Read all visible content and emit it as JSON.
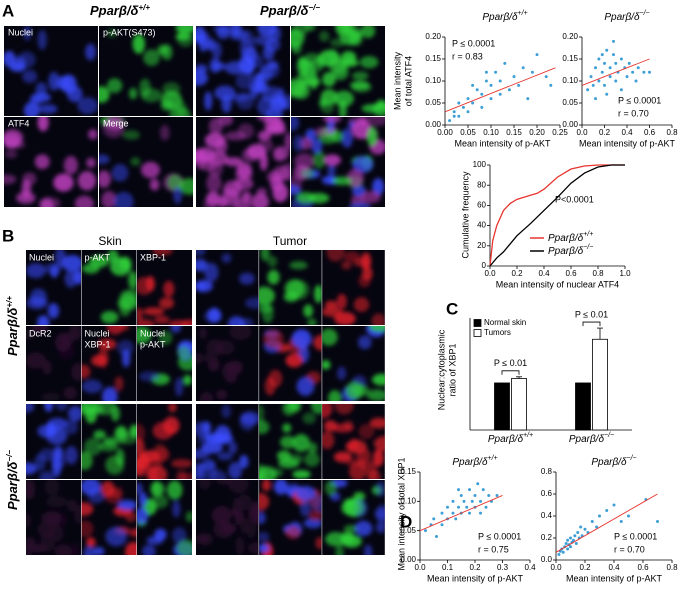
{
  "figure": {
    "panel_labels": [
      "A",
      "B",
      "C",
      "D"
    ],
    "image_a": {
      "headers": [
        {
          "base": "Pparβ/δ",
          "sup": "+/+"
        },
        {
          "base": "Pparβ/δ",
          "sup": "−/−"
        }
      ],
      "channels": [
        "Nuclei",
        "p-AKT(S473)",
        "ATF4",
        "Merge"
      ]
    },
    "image_b": {
      "columns": [
        "Skin",
        "Tumor"
      ],
      "rows": [
        {
          "base": "Pparβ/δ",
          "sup": "+/+"
        },
        {
          "base": "Pparβ/δ",
          "sup": "−/−"
        }
      ],
      "channels": [
        [
          "Nuclei"
        ],
        [
          "p-AKT"
        ],
        [
          "XBP-1"
        ],
        [
          "DcR2"
        ],
        [
          "Nuclei",
          "XBP-1"
        ],
        [
          "Nuclei",
          "p-AKT"
        ]
      ]
    }
  },
  "chart_data": [
    {
      "type": "scatter",
      "title": "Pparβ/δ",
      "title_sup": "+/+",
      "xlabel": "Mean intensity of p-AKT",
      "ylabel": [
        "Mean intensity",
        "of total ATF4"
      ],
      "color": "#3d9fd6",
      "x": [
        0.01,
        0.02,
        0.02,
        0.03,
        0.04,
        0.05,
        0.05,
        0.06,
        0.07,
        0.08,
        0.08,
        0.09,
        0.1,
        0.1,
        0.11,
        0.12,
        0.12,
        0.13,
        0.14,
        0.15,
        0.16,
        0.17,
        0.18,
        0.19,
        0.2,
        0.22,
        0.23,
        0.03,
        0.06,
        0.09
      ],
      "values": [
        0.01,
        0.03,
        0.02,
        0.05,
        0.04,
        0.03,
        0.06,
        0.05,
        0.08,
        0.04,
        0.07,
        0.1,
        0.06,
        0.09,
        0.12,
        0.07,
        0.1,
        0.14,
        0.08,
        0.11,
        0.09,
        0.13,
        0.06,
        0.12,
        0.16,
        0.11,
        0.09,
        0.02,
        0.09,
        0.12
      ],
      "fit_line": {
        "x": [
          0,
          0.24
        ],
        "y": [
          0.03,
          0.13
        ],
        "color": "#e8352f"
      },
      "annotations": [
        "P ≤ 0.0001",
        "r = 0.83"
      ],
      "xlim": [
        0,
        0.25
      ],
      "xticks": [
        {
          "value": 0,
          "label": "0.00"
        },
        0.05,
        {
          "value": 0.1,
          "label": "0.10"
        },
        0.15,
        {
          "value": 0.2,
          "label": "0.20"
        },
        0.25
      ],
      "ylim": [
        0,
        0.2
      ],
      "yticks": [
        {
          "value": 0,
          "label": "0.00"
        },
        0.05,
        {
          "value": 0.1,
          "label": "0.10"
        },
        0.15,
        {
          "value": 0.2,
          "label": "0.20"
        }
      ]
    },
    {
      "type": "scatter",
      "title": "Pparβ/δ",
      "title_sup": "−/−",
      "xlabel": "Mean intensity of p-AKT",
      "color": "#3d9fd6",
      "x": [
        0.05,
        0.08,
        0.1,
        0.12,
        0.15,
        0.15,
        0.18,
        0.2,
        0.2,
        0.22,
        0.25,
        0.25,
        0.28,
        0.3,
        0.3,
        0.32,
        0.35,
        0.35,
        0.38,
        0.4,
        0.42,
        0.45,
        0.48,
        0.5,
        0.55,
        0.6,
        0.12,
        0.18,
        0.28,
        0.22
      ],
      "values": [
        0.08,
        0.11,
        0.09,
        0.13,
        0.1,
        0.15,
        0.12,
        0.09,
        0.14,
        0.17,
        0.11,
        0.13,
        0.16,
        0.1,
        0.14,
        0.12,
        0.15,
        0.08,
        0.13,
        0.11,
        0.14,
        0.12,
        0.1,
        0.13,
        0.12,
        0.12,
        0.06,
        0.16,
        0.19,
        0.07
      ],
      "fit_line": {
        "x": [
          0,
          0.6
        ],
        "y": [
          0.09,
          0.15
        ],
        "color": "#e8352f"
      },
      "annotations": [
        "P ≤ 0.0001",
        "r = 0.70"
      ],
      "xlim": [
        0,
        0.8
      ],
      "xticks": [
        {
          "value": 0,
          "label": "0.0"
        },
        0.2,
        0.4,
        0.6,
        0.8
      ],
      "ylim": [
        0,
        0.2
      ],
      "yticks": [
        {
          "value": 0,
          "label": "0.00"
        },
        0.05,
        {
          "value": 0.1,
          "label": "0.10"
        },
        0.15,
        {
          "value": 0.2,
          "label": "0.20"
        }
      ]
    },
    {
      "type": "line",
      "xlabel": "Mean intensity of nuclear ATF4",
      "ylabel": [
        "Cumulative frequency"
      ],
      "annotations": [
        "P<0.0001"
      ],
      "series": [
        {
          "name": "Pparβ/δ",
          "name_sup": "+/+",
          "color": "#e8352f",
          "x": [
            0,
            0.02,
            0.05,
            0.1,
            0.15,
            0.2,
            0.3,
            0.35,
            0.4,
            0.5,
            0.6,
            0.7,
            0.8,
            1.0
          ],
          "values": [
            0,
            25,
            40,
            55,
            62,
            66,
            70,
            72,
            76,
            88,
            96,
            99,
            100,
            100
          ]
        },
        {
          "name": "Pparβ/δ",
          "name_sup": "−/−",
          "color": "#000000",
          "x": [
            0,
            0.05,
            0.1,
            0.15,
            0.2,
            0.3,
            0.4,
            0.5,
            0.6,
            0.7,
            0.8,
            0.9,
            1.0
          ],
          "values": [
            0,
            8,
            14,
            22,
            30,
            42,
            55,
            68,
            82,
            92,
            98,
            100,
            100
          ]
        }
      ],
      "xlim": [
        0,
        1
      ],
      "xticks": [
        {
          "value": 0,
          "label": "0.0"
        },
        0.2,
        0.4,
        0.6,
        0.8,
        {
          "value": 1,
          "label": "1.0"
        }
      ],
      "ylim": [
        0,
        100
      ],
      "yticks": [
        0,
        20,
        40,
        60,
        80,
        100
      ]
    },
    {
      "type": "bar",
      "ylabel": [
        "Nuclear:cytoplasmic",
        "ratio of XBP1"
      ],
      "categories": [
        "Pparβ/δ",
        "Pparβ/δ"
      ],
      "category_sups": [
        "+/+",
        "−/−"
      ],
      "series": [
        {
          "name": "Normal skin",
          "color": "#000000",
          "values": [
            0.84,
            0.84
          ]
        },
        {
          "name": "Tumors",
          "color": "#ffffff",
          "values": [
            0.92,
            1.62
          ],
          "errors": [
            0.03,
            0.2
          ]
        }
      ],
      "annotations": [
        "P ≤ 0.01",
        "P ≤ 0.01"
      ],
      "ylim": [
        0,
        2
      ]
    },
    {
      "type": "scatter",
      "title": "Pparβ/δ",
      "title_sup": "+/+",
      "xlabel": "Mean intensity of p-AKT",
      "ylabel": [
        "Mean intensity of total XBP1"
      ],
      "color": "#3d9fd6",
      "x": [
        0.02,
        0.04,
        0.05,
        0.06,
        0.08,
        0.08,
        0.1,
        0.1,
        0.12,
        0.12,
        0.13,
        0.14,
        0.15,
        0.15,
        0.16,
        0.17,
        0.18,
        0.18,
        0.19,
        0.2,
        0.2,
        0.21,
        0.22,
        0.23,
        0.24,
        0.25,
        0.26,
        0.28,
        0.14,
        0.22
      ],
      "values": [
        0.05,
        0.06,
        0.07,
        0.04,
        0.06,
        0.08,
        0.07,
        0.09,
        0.08,
        0.1,
        0.07,
        0.09,
        0.08,
        0.11,
        0.1,
        0.09,
        0.12,
        0.08,
        0.1,
        0.09,
        0.11,
        0.13,
        0.1,
        0.12,
        0.09,
        0.11,
        0.1,
        0.11,
        0.12,
        0.08
      ],
      "fit_line": {
        "x": [
          0,
          0.3
        ],
        "y": [
          0.05,
          0.11
        ],
        "color": "#e8352f"
      },
      "annotations": [
        "P ≤ 0.0001",
        "r = 0.75"
      ],
      "xlim": [
        0,
        0.4
      ],
      "xticks": [
        {
          "value": 0,
          "label": "0.0"
        },
        0.1,
        0.2,
        0.3,
        0.4
      ],
      "ylim": [
        0,
        0.15
      ],
      "yticks": [
        {
          "value": 0,
          "label": "0.00"
        },
        0.05,
        {
          "value": 0.1,
          "label": "0.10"
        },
        0.15
      ]
    },
    {
      "type": "scatter",
      "title": "Pparβ/δ",
      "title_sup": "−/−",
      "xlabel": "Mean intensity of p-AKT",
      "color": "#3d9fd6",
      "x": [
        0.02,
        0.03,
        0.04,
        0.05,
        0.06,
        0.07,
        0.08,
        0.08,
        0.09,
        0.1,
        0.1,
        0.11,
        0.12,
        0.13,
        0.14,
        0.15,
        0.16,
        0.17,
        0.18,
        0.2,
        0.22,
        0.25,
        0.28,
        0.3,
        0.35,
        0.4,
        0.45,
        0.5,
        0.62,
        0.7
      ],
      "values": [
        0.05,
        0.08,
        0.1,
        0.07,
        0.12,
        0.15,
        0.1,
        0.18,
        0.14,
        0.12,
        0.2,
        0.16,
        0.18,
        0.22,
        0.15,
        0.25,
        0.2,
        0.3,
        0.22,
        0.28,
        0.25,
        0.35,
        0.3,
        0.4,
        0.45,
        0.5,
        0.35,
        0.4,
        0.55,
        0.35
      ],
      "fit_line": {
        "x": [
          0,
          0.7
        ],
        "y": [
          0.07,
          0.6
        ],
        "color": "#e8352f"
      },
      "annotations": [
        "P ≤ 0.0001",
        "r = 0.70"
      ],
      "xlim": [
        0,
        0.8
      ],
      "xticks": [
        {
          "value": 0,
          "label": "0.0"
        },
        0.2,
        0.4,
        0.6,
        0.8
      ],
      "ylim": [
        0,
        0.8
      ],
      "yticks": [
        {
          "value": 0,
          "label": "0.0"
        },
        0.2,
        0.4,
        0.6,
        0.8
      ]
    }
  ]
}
